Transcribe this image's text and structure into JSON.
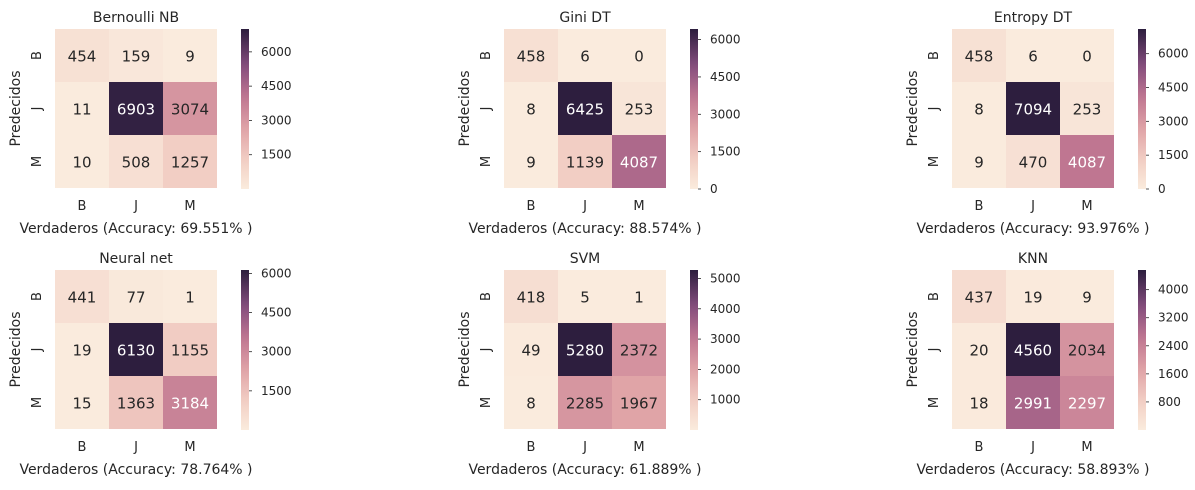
{
  "ylabel": "Predecidos",
  "colorbar_min": 0,
  "chart_data": [
    {
      "type": "heatmap",
      "title": "Bernoulli NB",
      "xlabel": "Verdaderos (Accuracy: 69.551% )",
      "ylabel": "Predecidos",
      "x_categories": [
        "B",
        "J",
        "M"
      ],
      "y_categories": [
        "B",
        "J",
        "M"
      ],
      "values": [
        [
          454,
          159,
          9
        ],
        [
          11,
          6903,
          3074
        ],
        [
          10,
          508,
          1257
        ]
      ],
      "vmax": 7000,
      "colorbar_ticks": [
        1500,
        3000,
        4500,
        6000
      ]
    },
    {
      "type": "heatmap",
      "title": "Gini DT",
      "xlabel": "Verdaderos (Accuracy: 88.574% )",
      "ylabel": "Predecidos",
      "x_categories": [
        "B",
        "J",
        "M"
      ],
      "y_categories": [
        "B",
        "J",
        "M"
      ],
      "values": [
        [
          458,
          6,
          0
        ],
        [
          8,
          6425,
          253
        ],
        [
          9,
          1139,
          4087
        ]
      ],
      "vmax": 6425,
      "colorbar_ticks": [
        0,
        1500,
        3000,
        4500,
        6000
      ]
    },
    {
      "type": "heatmap",
      "title": "Entropy DT",
      "xlabel": "Verdaderos (Accuracy: 93.976% )",
      "ylabel": "Predecidos",
      "x_categories": [
        "B",
        "J",
        "M"
      ],
      "y_categories": [
        "B",
        "J",
        "M"
      ],
      "values": [
        [
          458,
          6,
          0
        ],
        [
          8,
          7094,
          253
        ],
        [
          9,
          470,
          4087
        ]
      ],
      "vmax": 7094,
      "colorbar_ticks": [
        0,
        1500,
        3000,
        4500,
        6000
      ]
    },
    {
      "type": "heatmap",
      "title": "Neural net",
      "xlabel": "Verdaderos (Accuracy: 78.764% )",
      "ylabel": "Predecidos",
      "x_categories": [
        "B",
        "J",
        "M"
      ],
      "y_categories": [
        "B",
        "J",
        "M"
      ],
      "values": [
        [
          441,
          77,
          1
        ],
        [
          19,
          6130,
          1155
        ],
        [
          15,
          1363,
          3184
        ]
      ],
      "vmax": 6130,
      "colorbar_ticks": [
        1500,
        3000,
        4500,
        6000
      ]
    },
    {
      "type": "heatmap",
      "title": "SVM",
      "xlabel": "Verdaderos (Accuracy: 61.889% )",
      "ylabel": "Predecidos",
      "x_categories": [
        "B",
        "J",
        "M"
      ],
      "y_categories": [
        "B",
        "J",
        "M"
      ],
      "values": [
        [
          418,
          5,
          1
        ],
        [
          49,
          5280,
          2372
        ],
        [
          8,
          2285,
          1967
        ]
      ],
      "vmax": 5280,
      "colorbar_ticks": [
        1000,
        2000,
        3000,
        4000,
        5000
      ]
    },
    {
      "type": "heatmap",
      "title": "KNN",
      "xlabel": "Verdaderos (Accuracy: 58.893% )",
      "ylabel": "Predecidos",
      "x_categories": [
        "B",
        "J",
        "M"
      ],
      "y_categories": [
        "B",
        "J",
        "M"
      ],
      "values": [
        [
          437,
          19,
          9
        ],
        [
          20,
          4560,
          2034
        ],
        [
          18,
          2991,
          2297
        ]
      ],
      "vmax": 4560,
      "colorbar_ticks": [
        800,
        1600,
        2400,
        3200,
        4000
      ]
    }
  ]
}
